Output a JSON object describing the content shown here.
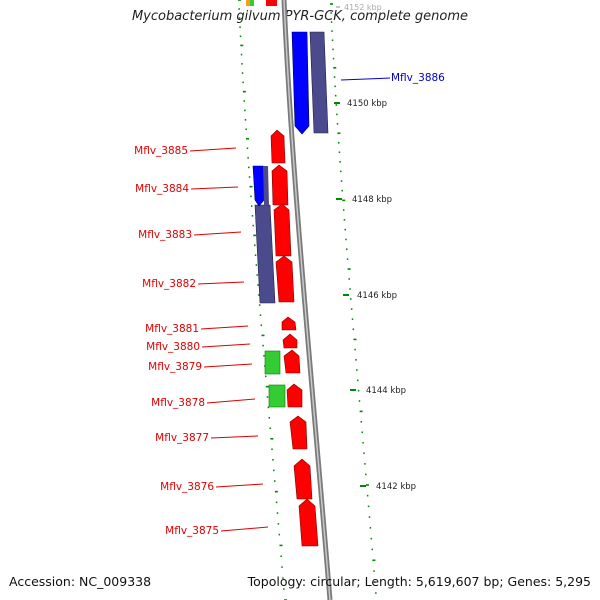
{
  "title": "Mycobacterium gilvum PYR-GCK, complete genome",
  "accession": "Accession: NC_009338",
  "topology": "Topology: circular; Length: 5,619,607 bp; Genes: 5,295",
  "tick_labels": [
    "4152 kbp",
    "4150 kbp",
    "4148 kbp",
    "4146 kbp",
    "4144 kbp",
    "4142 kbp"
  ],
  "genes": [
    {
      "name": "Mflv_3886",
      "color": "#0000cc"
    },
    {
      "name": "Mflv_3885",
      "color": "#dd0000"
    },
    {
      "name": "Mflv_3884",
      "color": "#dd0000"
    },
    {
      "name": "Mflv_3883",
      "color": "#dd0000"
    },
    {
      "name": "Mflv_3882",
      "color": "#dd0000"
    },
    {
      "name": "Mflv_3881",
      "color": "#dd0000"
    },
    {
      "name": "Mflv_3880",
      "color": "#dd0000"
    },
    {
      "name": "Mflv_3879",
      "color": "#dd0000"
    },
    {
      "name": "Mflv_3878",
      "color": "#dd0000"
    },
    {
      "name": "Mflv_3877",
      "color": "#dd0000"
    },
    {
      "name": "Mflv_3876",
      "color": "#dd0000"
    },
    {
      "name": "Mflv_3875",
      "color": "#dd0000"
    }
  ],
  "colors": {
    "backbone": "#8a8a8a",
    "gene_forward": "#ff0000",
    "gene_reverse": "#0000ff",
    "feature_purple": "#4a4a8c",
    "feature_green": "#33cc33",
    "gc_dots": "#008800",
    "label_red": "#dd0000",
    "label_blue": "#0000cc"
  }
}
